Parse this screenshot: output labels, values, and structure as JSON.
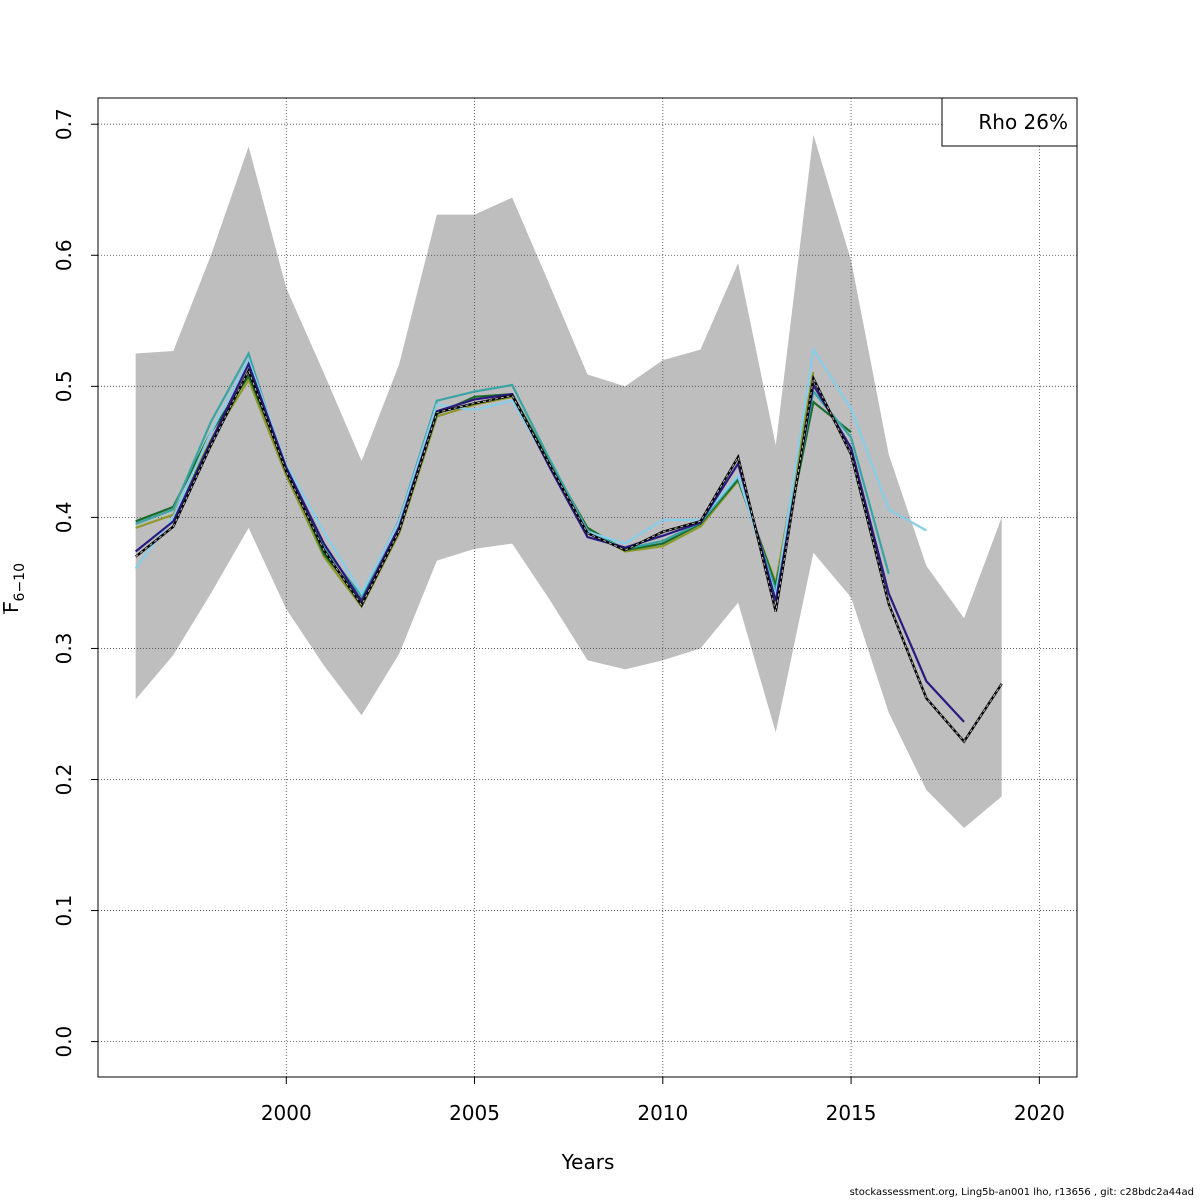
{
  "chart_data": {
    "type": "line",
    "xlabel": "Years",
    "ylabel": "F",
    "ylabel_subscript": "6−10",
    "xlim": [
      1995,
      2021
    ],
    "ylim": [
      -0.027,
      0.72
    ],
    "x_ticks": [
      2000,
      2005,
      2010,
      2015,
      2020
    ],
    "y_ticks": [
      0.0,
      0.1,
      0.2,
      0.3,
      0.4,
      0.5,
      0.6,
      0.7
    ],
    "x_tick_labels": [
      "2000",
      "2005",
      "2010",
      "2015",
      "2020"
    ],
    "y_tick_labels": [
      "0.0",
      "0.1",
      "0.2",
      "0.3",
      "0.4",
      "0.5",
      "0.6",
      "0.7"
    ],
    "grid": true,
    "legend": {
      "placement": "top-right",
      "text": "Rho 26%"
    },
    "confidence_band": {
      "color": "#bebebe",
      "x": [
        1996,
        1997,
        1998,
        1999,
        2000,
        2001,
        2002,
        2003,
        2004,
        2005,
        2006,
        2007,
        2008,
        2009,
        2010,
        2011,
        2012,
        2013,
        2014,
        2015,
        2016,
        2017,
        2018,
        2019
      ],
      "upper": [
        0.525,
        0.527,
        0.6,
        0.683,
        0.575,
        0.51,
        0.443,
        0.517,
        0.631,
        0.631,
        0.644,
        0.577,
        0.509,
        0.5,
        0.52,
        0.528,
        0.594,
        0.455,
        0.692,
        0.596,
        0.448,
        0.363,
        0.323,
        0.4
      ],
      "lower": [
        0.261,
        0.295,
        0.342,
        0.392,
        0.33,
        0.287,
        0.249,
        0.296,
        0.367,
        0.376,
        0.38,
        0.337,
        0.291,
        0.284,
        0.291,
        0.3,
        0.335,
        0.236,
        0.373,
        0.339,
        0.251,
        0.192,
        0.163,
        0.187
      ]
    },
    "series": [
      {
        "color": "#000000",
        "dashed": true,
        "x": [
          1996,
          1997,
          1998,
          1999,
          2000,
          2001,
          2002,
          2003,
          2004,
          2005,
          2006,
          2007,
          2008,
          2009,
          2010,
          2011,
          2012,
          2013,
          2014,
          2015,
          2016,
          2017,
          2018,
          2019
        ],
        "values": [
          0.37,
          0.393,
          0.455,
          0.512,
          0.435,
          0.375,
          0.333,
          0.39,
          0.48,
          0.487,
          0.493,
          0.44,
          0.388,
          0.375,
          0.389,
          0.397,
          0.446,
          0.328,
          0.506,
          0.448,
          0.334,
          0.262,
          0.229,
          0.273
        ]
      },
      {
        "color": "#2a1a80",
        "x": [
          1996,
          1997,
          1998,
          1999,
          2000,
          2001,
          2002,
          2003,
          2004,
          2005,
          2006,
          2007,
          2008,
          2009,
          2010,
          2011,
          2012,
          2013,
          2014,
          2015,
          2016,
          2017,
          2018
        ],
        "values": [
          0.374,
          0.397,
          0.458,
          0.517,
          0.438,
          0.38,
          0.336,
          0.393,
          0.481,
          0.49,
          0.494,
          0.438,
          0.385,
          0.377,
          0.386,
          0.396,
          0.441,
          0.336,
          0.501,
          0.453,
          0.342,
          0.275,
          0.244
        ]
      },
      {
        "color": "#87ceeb",
        "x": [
          1996,
          1997,
          1998,
          1999,
          2000,
          2001,
          2002,
          2003,
          2004,
          2005,
          2006,
          2007,
          2008,
          2009,
          2010,
          2011,
          2012,
          2013,
          2014,
          2015,
          2016,
          2017
        ],
        "values": [
          0.361,
          0.4,
          0.465,
          0.52,
          0.44,
          0.389,
          0.342,
          0.397,
          0.486,
          0.482,
          0.489,
          0.44,
          0.389,
          0.38,
          0.398,
          0.398,
          0.432,
          0.34,
          0.528,
          0.483,
          0.406,
          0.39
        ]
      },
      {
        "color": "#3aa4a4",
        "x": [
          1996,
          1997,
          1998,
          1999,
          2000,
          2001,
          2002,
          2003,
          2004,
          2005,
          2006,
          2007,
          2008,
          2009,
          2010,
          2011,
          2012,
          2013,
          2014,
          2015,
          2016
        ],
        "values": [
          0.395,
          0.406,
          0.473,
          0.525,
          0.435,
          0.377,
          0.34,
          0.398,
          0.489,
          0.496,
          0.501,
          0.444,
          0.39,
          0.376,
          0.382,
          0.396,
          0.431,
          0.344,
          0.496,
          0.461,
          0.357
        ]
      },
      {
        "color": "#1a6b2a",
        "x": [
          1996,
          1997,
          1998,
          1999,
          2000,
          2001,
          2002,
          2003,
          2004,
          2005,
          2006,
          2007,
          2008,
          2009,
          2010,
          2011,
          2012,
          2013,
          2014,
          2015
        ],
        "values": [
          0.397,
          0.408,
          0.465,
          0.508,
          0.438,
          0.372,
          0.337,
          0.391,
          0.479,
          0.492,
          0.494,
          0.442,
          0.392,
          0.375,
          0.38,
          0.395,
          0.429,
          0.348,
          0.488,
          0.465
        ]
      },
      {
        "color": "#8b9a2a",
        "x": [
          1996,
          1997,
          1998,
          1999,
          2000,
          2001,
          2002,
          2003,
          2004,
          2005,
          2006,
          2007,
          2008,
          2009,
          2010,
          2011,
          2012,
          2013,
          2014
        ],
        "values": [
          0.392,
          0.402,
          0.459,
          0.505,
          0.432,
          0.37,
          0.332,
          0.388,
          0.477,
          0.486,
          0.492,
          0.44,
          0.391,
          0.374,
          0.378,
          0.393,
          0.428,
          0.35,
          0.511
        ]
      }
    ]
  },
  "footer": "stockassessment.org, Ling5b-an001  lho, r13656 , git: c28bdc2a44ad"
}
